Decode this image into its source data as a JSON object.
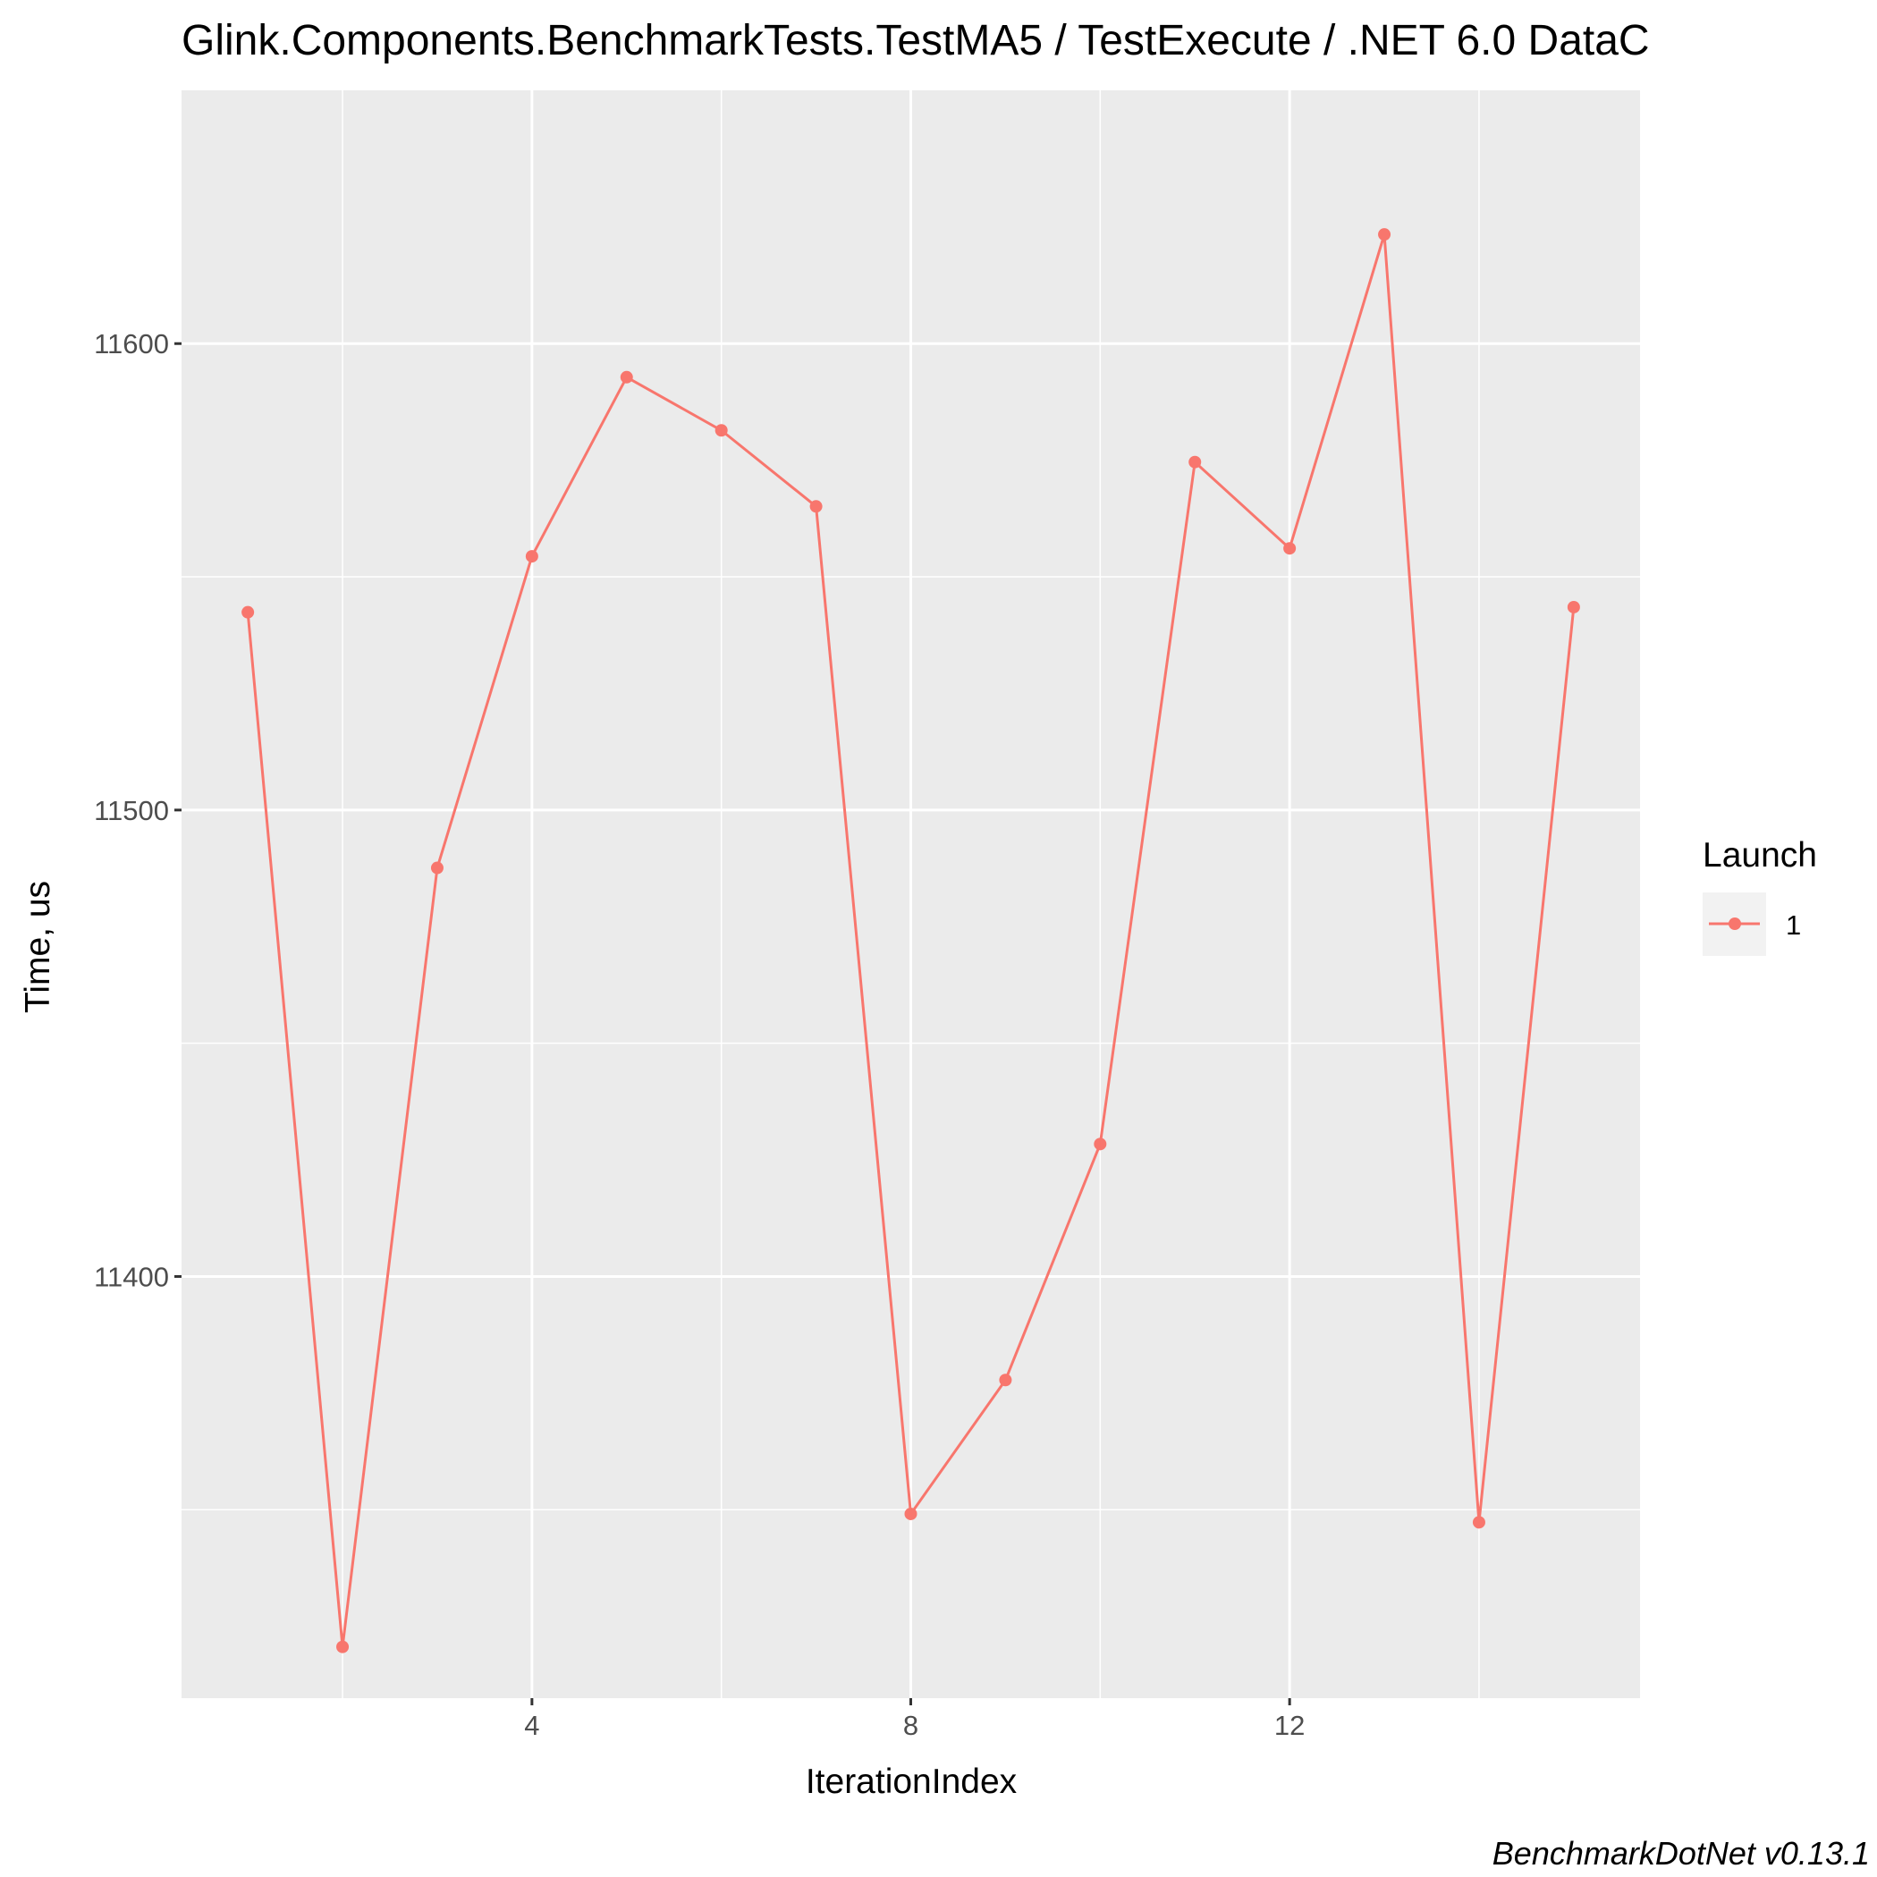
{
  "chart_data": {
    "type": "line",
    "title": "Glink.Components.BenchmarkTests.TestMA5 / TestExecute / .NET 6.0 DataC",
    "xlabel": "IterationIndex",
    "ylabel": "Time, us",
    "caption": "BenchmarkDotNet v0.13.1",
    "xlim": [
      0.3,
      15.7
    ],
    "ylim": [
      11309.6,
      11654.3
    ],
    "x_ticks": [
      4,
      8,
      12
    ],
    "x_tick_labels": [
      "4",
      "8",
      "12"
    ],
    "x_minor_ticks": [
      2,
      6,
      10,
      14
    ],
    "y_ticks": [
      11400,
      11500,
      11600
    ],
    "y_tick_labels": [
      "11400",
      "11500",
      "11600"
    ],
    "y_minor_ticks": [
      11350,
      11450,
      11550
    ],
    "grid": true,
    "legend": {
      "title": "Launch",
      "position": "right"
    },
    "series": [
      {
        "name": "1",
        "color": "#F8766D",
        "x": [
          1,
          2,
          3,
          4,
          5,
          6,
          7,
          8,
          9,
          10,
          11,
          12,
          13,
          14,
          15
        ],
        "y": [
          11542.4,
          11320.6,
          11487.6,
          11554.4,
          11592.8,
          11581.4,
          11565.1,
          11349.1,
          11377.8,
          11428.4,
          11574.6,
          11556.1,
          11623.4,
          11347.3,
          11543.5
        ]
      }
    ]
  }
}
